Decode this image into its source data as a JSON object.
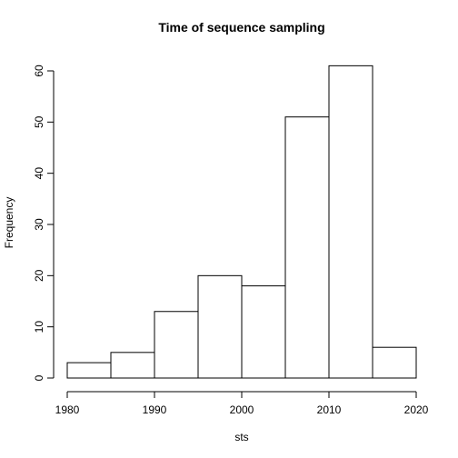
{
  "chart_data": {
    "type": "bar",
    "title": "Time of sequence sampling",
    "xlabel": "sts",
    "ylabel": "Frequency",
    "bins": [
      {
        "start": 1980,
        "end": 1985,
        "count": 3
      },
      {
        "start": 1985,
        "end": 1990,
        "count": 5
      },
      {
        "start": 1990,
        "end": 1995,
        "count": 13
      },
      {
        "start": 1995,
        "end": 2000,
        "count": 20
      },
      {
        "start": 2000,
        "end": 2005,
        "count": 18
      },
      {
        "start": 2005,
        "end": 2010,
        "count": 51
      },
      {
        "start": 2010,
        "end": 2015,
        "count": 61
      },
      {
        "start": 2015,
        "end": 2020,
        "count": 6
      }
    ],
    "xlim": [
      1980,
      2020
    ],
    "ylim": [
      0,
      60
    ],
    "xticks": [
      "1980",
      "1990",
      "2000",
      "2010",
      "2020"
    ],
    "yticks": [
      "0",
      "10",
      "20",
      "30",
      "40",
      "50",
      "60"
    ],
    "grid": false
  }
}
